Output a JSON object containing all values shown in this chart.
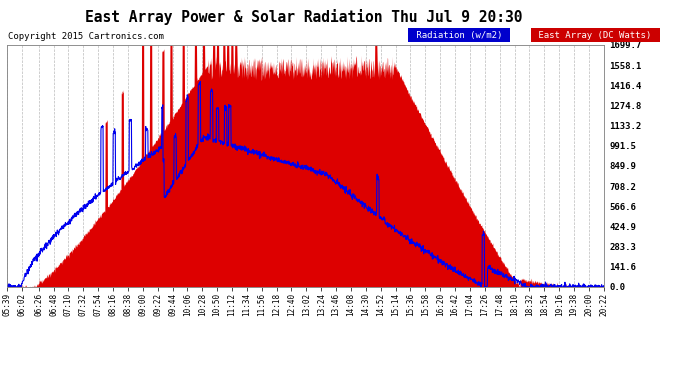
{
  "title": "East Array Power & Solar Radiation Thu Jul 9 20:30",
  "copyright": "Copyright 2015 Cartronics.com",
  "legend_labels": [
    "Radiation (w/m2)",
    "East Array (DC Watts)"
  ],
  "legend_bg_colors": [
    "#0000cc",
    "#cc0000"
  ],
  "y_max": 1699.7,
  "y_min": 0.0,
  "y_ticks": [
    0.0,
    141.6,
    283.3,
    424.9,
    566.6,
    708.2,
    849.9,
    991.5,
    1133.2,
    1274.8,
    1416.4,
    1558.1,
    1699.7
  ],
  "background_color": "#ffffff",
  "plot_bg_color": "#ffffff",
  "grid_color": "#aaaaaa",
  "red_color": "#dd0000",
  "blue_color": "#0000ee",
  "x_labels": [
    "05:39",
    "06:02",
    "06:26",
    "06:48",
    "07:10",
    "07:32",
    "07:54",
    "08:16",
    "08:38",
    "09:00",
    "09:22",
    "09:44",
    "10:06",
    "10:28",
    "10:50",
    "11:12",
    "11:34",
    "11:56",
    "12:18",
    "12:40",
    "13:02",
    "13:24",
    "13:46",
    "14:08",
    "14:30",
    "14:52",
    "15:14",
    "15:36",
    "15:58",
    "16:20",
    "16:42",
    "17:04",
    "17:26",
    "17:48",
    "18:10",
    "18:32",
    "18:54",
    "19:16",
    "19:38",
    "20:00",
    "20:22"
  ],
  "fig_width": 6.9,
  "fig_height": 3.75,
  "dpi": 100
}
